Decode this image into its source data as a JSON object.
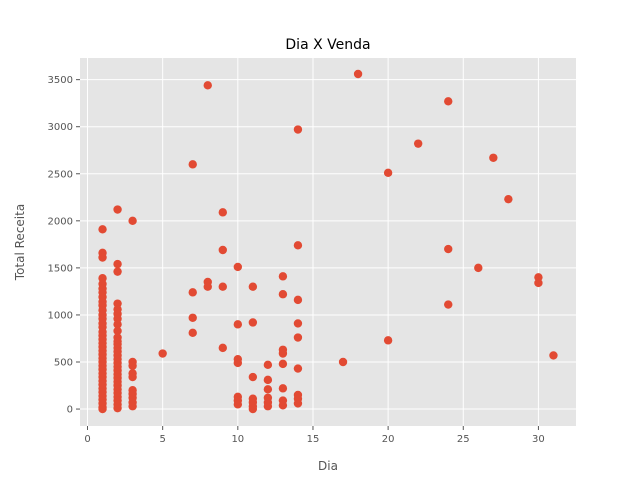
{
  "chart_data": {
    "type": "scatter",
    "title": "Dia X Venda",
    "xlabel": "Dia",
    "ylabel": "Total Receita",
    "xlim": [
      -0.5,
      32.5
    ],
    "ylim": [
      -180,
      3730
    ],
    "xticks": [
      0,
      5,
      10,
      15,
      20,
      25,
      30
    ],
    "yticks": [
      0,
      500,
      1000,
      1500,
      2000,
      2500,
      3000,
      3500
    ],
    "grid": true,
    "style": "ggplot",
    "colors": {
      "background": "#e5e5e5",
      "grid": "#ffffff",
      "marker": "#e24a33"
    },
    "series": [
      {
        "points": [
          [
            1,
            1910
          ],
          [
            1,
            1660
          ],
          [
            1,
            1610
          ],
          [
            1,
            1390
          ],
          [
            1,
            1330
          ],
          [
            1,
            1280
          ],
          [
            1,
            1240
          ],
          [
            1,
            1190
          ],
          [
            1,
            1140
          ],
          [
            1,
            1100
          ],
          [
            1,
            1050
          ],
          [
            1,
            1000
          ],
          [
            1,
            960
          ],
          [
            1,
            910
          ],
          [
            1,
            870
          ],
          [
            1,
            820
          ],
          [
            1,
            780
          ],
          [
            1,
            740
          ],
          [
            1,
            700
          ],
          [
            1,
            660
          ],
          [
            1,
            620
          ],
          [
            1,
            580
          ],
          [
            1,
            540
          ],
          [
            1,
            500
          ],
          [
            1,
            460
          ],
          [
            1,
            420
          ],
          [
            1,
            380
          ],
          [
            1,
            340
          ],
          [
            1,
            300
          ],
          [
            1,
            260
          ],
          [
            1,
            220
          ],
          [
            1,
            180
          ],
          [
            1,
            140
          ],
          [
            1,
            100
          ],
          [
            1,
            60
          ],
          [
            1,
            20
          ],
          [
            1,
            0
          ],
          [
            2,
            2120
          ],
          [
            2,
            1540
          ],
          [
            2,
            1460
          ],
          [
            2,
            1120
          ],
          [
            2,
            1060
          ],
          [
            2,
            1010
          ],
          [
            2,
            960
          ],
          [
            2,
            900
          ],
          [
            2,
            830
          ],
          [
            2,
            760
          ],
          [
            2,
            720
          ],
          [
            2,
            690
          ],
          [
            2,
            650
          ],
          [
            2,
            610
          ],
          [
            2,
            570
          ],
          [
            2,
            530
          ],
          [
            2,
            490
          ],
          [
            2,
            450
          ],
          [
            2,
            410
          ],
          [
            2,
            370
          ],
          [
            2,
            330
          ],
          [
            2,
            290
          ],
          [
            2,
            250
          ],
          [
            2,
            210
          ],
          [
            2,
            170
          ],
          [
            2,
            130
          ],
          [
            2,
            90
          ],
          [
            2,
            50
          ],
          [
            2,
            10
          ],
          [
            3,
            2000
          ],
          [
            3,
            500
          ],
          [
            3,
            460
          ],
          [
            3,
            380
          ],
          [
            3,
            340
          ],
          [
            3,
            200
          ],
          [
            3,
            160
          ],
          [
            3,
            120
          ],
          [
            3,
            70
          ],
          [
            3,
            30
          ],
          [
            5,
            590
          ],
          [
            7,
            2600
          ],
          [
            7,
            1240
          ],
          [
            7,
            970
          ],
          [
            7,
            810
          ],
          [
            8,
            3440
          ],
          [
            8,
            1350
          ],
          [
            8,
            1300
          ],
          [
            9,
            2090
          ],
          [
            9,
            1690
          ],
          [
            9,
            1300
          ],
          [
            9,
            650
          ],
          [
            10,
            1510
          ],
          [
            10,
            900
          ],
          [
            10,
            530
          ],
          [
            10,
            490
          ],
          [
            10,
            130
          ],
          [
            10,
            90
          ],
          [
            10,
            50
          ],
          [
            11,
            1300
          ],
          [
            11,
            920
          ],
          [
            11,
            340
          ],
          [
            11,
            110
          ],
          [
            11,
            70
          ],
          [
            11,
            30
          ],
          [
            11,
            0
          ],
          [
            12,
            470
          ],
          [
            12,
            310
          ],
          [
            12,
            210
          ],
          [
            12,
            120
          ],
          [
            12,
            70
          ],
          [
            12,
            30
          ],
          [
            13,
            1410
          ],
          [
            13,
            1220
          ],
          [
            13,
            630
          ],
          [
            13,
            590
          ],
          [
            13,
            480
          ],
          [
            13,
            220
          ],
          [
            13,
            90
          ],
          [
            13,
            40
          ],
          [
            14,
            2970
          ],
          [
            14,
            1740
          ],
          [
            14,
            1160
          ],
          [
            14,
            910
          ],
          [
            14,
            760
          ],
          [
            14,
            430
          ],
          [
            14,
            150
          ],
          [
            14,
            110
          ],
          [
            14,
            60
          ],
          [
            17,
            500
          ],
          [
            18,
            3560
          ],
          [
            20,
            2510
          ],
          [
            20,
            730
          ],
          [
            22,
            2820
          ],
          [
            24,
            3270
          ],
          [
            24,
            1700
          ],
          [
            24,
            1110
          ],
          [
            26,
            1500
          ],
          [
            27,
            2670
          ],
          [
            28,
            2230
          ],
          [
            30,
            1400
          ],
          [
            30,
            1340
          ],
          [
            31,
            570
          ]
        ]
      }
    ]
  }
}
